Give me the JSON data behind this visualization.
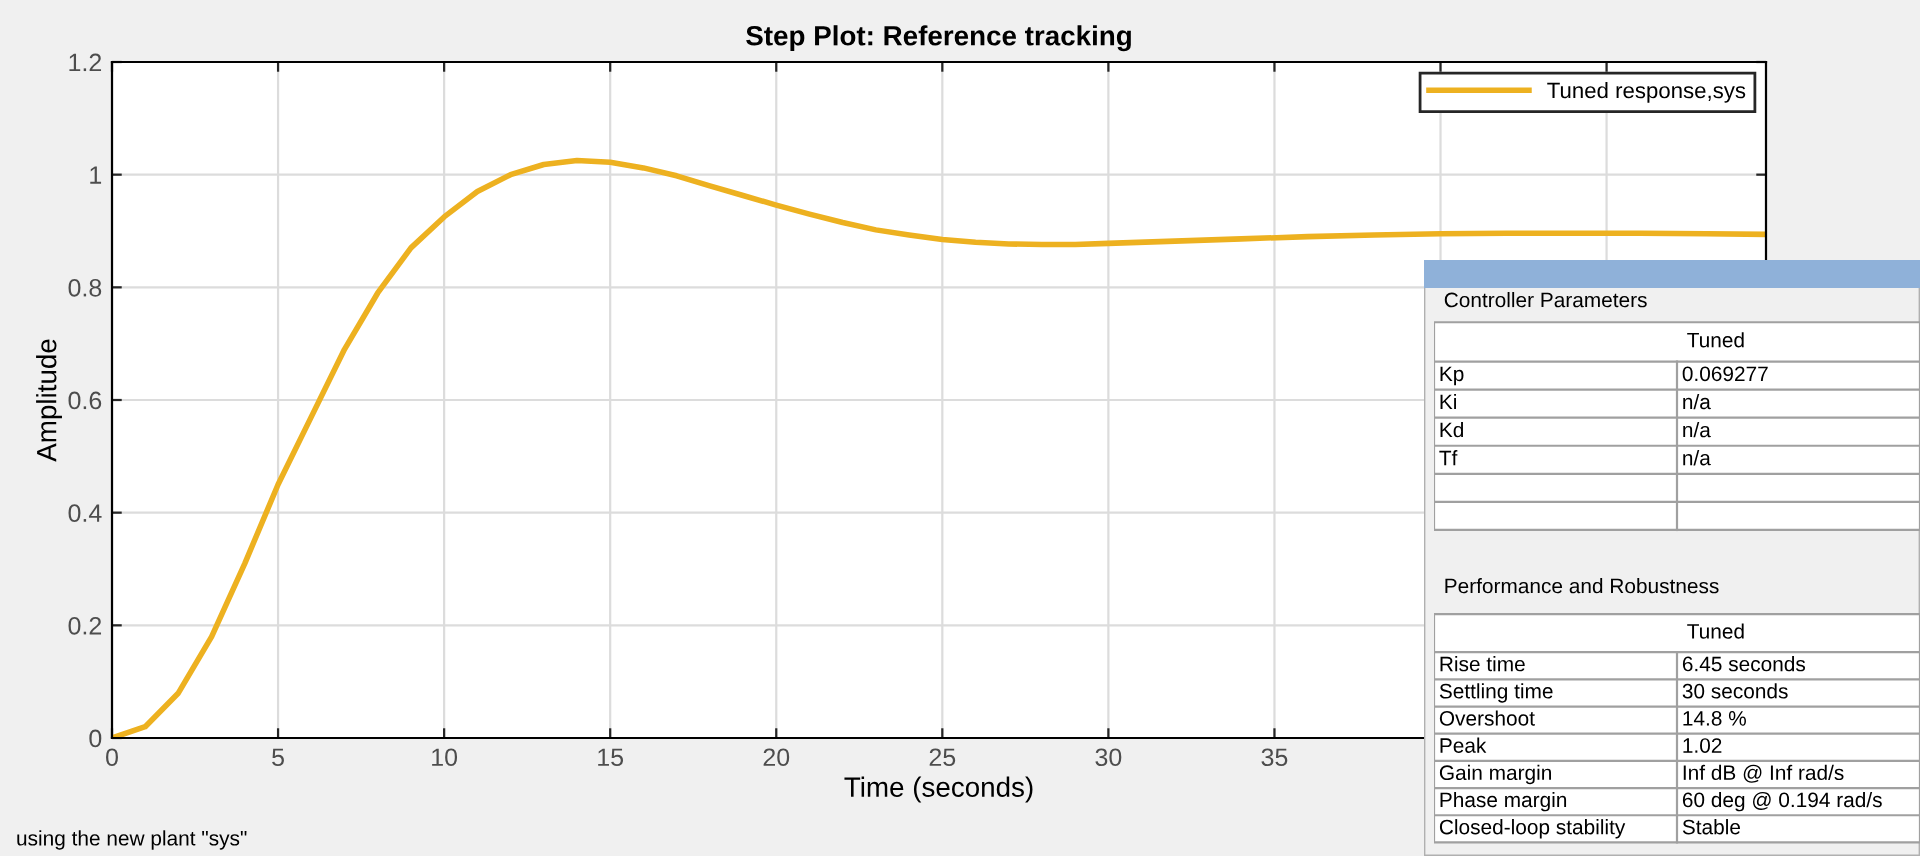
{
  "chart_data": [
    {
      "type": "line",
      "title": "Step Plot: Reference tracking",
      "xlabel": "Time (seconds)",
      "ylabel": "Amplitude",
      "x": [
        0,
        1,
        2,
        3,
        4,
        5,
        6,
        7,
        8,
        9,
        10,
        11,
        12,
        13,
        14,
        15,
        16,
        17,
        18,
        19,
        20,
        21,
        22,
        23,
        24,
        25,
        26,
        27,
        28,
        29,
        30,
        32,
        34,
        36,
        38,
        40,
        42,
        44,
        46,
        48,
        49.8
      ],
      "series": [
        {
          "name": "Tuned response,sys",
          "color": "#edb120",
          "values": [
            0,
            0.02,
            0.08,
            0.18,
            0.31,
            0.45,
            0.57,
            0.69,
            0.79,
            0.87,
            0.925,
            0.97,
            1.0,
            1.018,
            1.025,
            1.022,
            1.012,
            0.998,
            0.98,
            0.963,
            0.946,
            0.93,
            0.915,
            0.902,
            0.893,
            0.885,
            0.88,
            0.877,
            0.876,
            0.876,
            0.878,
            0.882,
            0.886,
            0.89,
            0.893,
            0.895,
            0.896,
            0.896,
            0.896,
            0.895,
            0.894
          ]
        }
      ],
      "xlim": [
        0,
        49.8
      ],
      "ylim": [
        0,
        1.2
      ],
      "xticks": [
        0,
        5,
        10,
        15,
        20,
        25,
        30,
        35,
        {
          "value": 40,
          "label": null
        },
        {
          "value": 45,
          "label": null
        }
      ],
      "yticks": [
        0,
        0.2,
        0.4,
        0.6,
        0.8,
        1,
        1.2
      ],
      "grid": true,
      "legend": "top right",
      "marker": "none",
      "line_style": "solid",
      "annotations": [
        "using the new plant \"sys\""
      ]
    },
    {
      "type": "other",
      "title": "Controller Parameters",
      "annotations": [
        "Tuned",
        "Kp",
        "0.069277",
        "Ki",
        "n/a",
        "Kd",
        "n/a",
        "Tf",
        "n/a"
      ]
    },
    {
      "type": "other",
      "title": "Performance and Robustness",
      "annotations": [
        "Tuned",
        "Rise time",
        "6.45 seconds",
        "Settling time",
        "30 seconds",
        "Overshoot",
        "14.8 %",
        "Peak",
        "1.02",
        "Gain margin",
        "Inf dB @ Inf rad/s",
        "Phase margin",
        "60 deg @ 0.194 rad/s",
        "Closed-loop stability",
        "Stable"
      ]
    }
  ]
}
